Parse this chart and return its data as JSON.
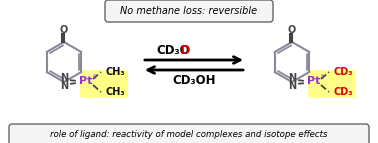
{
  "bg_color": "#ffffff",
  "top_box_text": "No methane loss: reversible",
  "bottom_box_text": "role of ligand: reactivity of model complexes and isotope effects",
  "pt_color": "#9933cc",
  "ring_color": "#888899",
  "bond_color": "#444444",
  "left_highlight": "#ffff88",
  "right_highlight": "#ffff88",
  "cd3_color": "#dd0000",
  "ch3_color": "#111111",
  "arrow_top_label_black": "CD₃O",
  "arrow_top_label_red": "D",
  "arrow_bottom_label": "CD₃OH",
  "fig_width": 3.78,
  "fig_height": 1.43,
  "dpi": 100
}
